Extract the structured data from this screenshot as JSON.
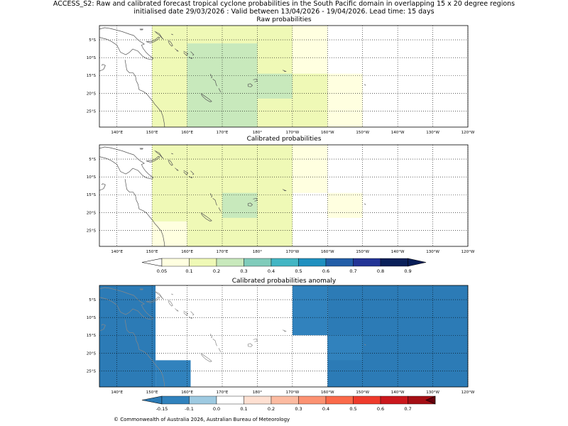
{
  "title": {
    "line1": "ACCESS_S2: Raw and calibrated forecast tropical cyclone probabilities in the South Pacific domain in overlapping 15 x 20 degree regions",
    "line2": "initialised date 29/03/2026 :  Valid between 13/04/2026 - 19/04/2026. Lead time: 15 days"
  },
  "axes": {
    "lon_labels": [
      "140°E",
      "150°E",
      "160°E",
      "170°E",
      "180°",
      "170°W",
      "160°W",
      "150°W",
      "140°W",
      "130°W",
      "120°W"
    ],
    "lat_labels": [
      "5°S",
      "10°S",
      "15°S",
      "20°S",
      "25°S"
    ]
  },
  "colors": {
    "prob": [
      "#ffffe0",
      "#eff9b6",
      "#c8e9bc",
      "#80ccbb",
      "#42b6c4",
      "#1f90c0",
      "#225ea8",
      "#233496",
      "#091f59"
    ],
    "prob_under": "#ffffff",
    "prob_over": "#081d58",
    "anom": [
      "#3182bd",
      "#9ecae1",
      "#ffffff",
      "#fee0d2",
      "#fcbba1",
      "#fc9272",
      "#fb6a4a",
      "#ef3b2c",
      "#cb181d",
      "#a50f15"
    ],
    "anom_under": "#2c7bb6",
    "anom_over": "#67000d",
    "coast": "#555555",
    "coast_anom": "#888888",
    "grid": "#000000"
  },
  "chart_data": [
    {
      "type": "heatmap",
      "title": "Raw probabilities",
      "lon_range": [
        135,
        240
      ],
      "lat_range": [
        -29.5,
        -1
      ],
      "cells": [
        {
          "lon": [
            150,
            160
          ],
          "lat": [
            -29.5,
            -1
          ],
          "value": 0.15
        },
        {
          "lon": [
            160,
            180
          ],
          "lat": [
            -29.5,
            -6
          ],
          "value": 0.25
        },
        {
          "lon": [
            160,
            180
          ],
          "lat": [
            -6,
            -1
          ],
          "value": 0.15
        },
        {
          "lon": [
            180,
            190
          ],
          "lat": [
            -29.5,
            -1
          ],
          "value": 0.15
        },
        {
          "lon": [
            180,
            190
          ],
          "lat": [
            -21.5,
            -14.5
          ],
          "value": 0.25
        },
        {
          "lon": [
            190,
            200
          ],
          "lat": [
            -29.5,
            -1
          ],
          "value": 0.07
        },
        {
          "lon": [
            190,
            200
          ],
          "lat": [
            -29.5,
            -14.5
          ],
          "value": 0.15
        },
        {
          "lon": [
            200,
            210
          ],
          "lat": [
            -29.5,
            -14.5
          ],
          "value": 0.07
        }
      ]
    },
    {
      "type": "heatmap",
      "title": "Calibrated probabilities",
      "lon_range": [
        135,
        240
      ],
      "lat_range": [
        -29.5,
        -1
      ],
      "cells": [
        {
          "lon": [
            150,
            190
          ],
          "lat": [
            -29.5,
            -1
          ],
          "value": 0.15
        },
        {
          "lon": [
            150,
            160
          ],
          "lat": [
            -29.5,
            -22.5
          ],
          "value": 0.07
        },
        {
          "lon": [
            170,
            180
          ],
          "lat": [
            -21.5,
            -14.5
          ],
          "value": 0.25
        },
        {
          "lon": [
            190,
            200
          ],
          "lat": [
            -14.5,
            -1
          ],
          "value": 0.07
        },
        {
          "lon": [
            200,
            210
          ],
          "lat": [
            -21.5,
            -14.5
          ],
          "value": 0.07
        }
      ]
    },
    {
      "type": "heatmap",
      "title": "Calibrated probabilities anomaly",
      "lon_range": [
        135,
        240
      ],
      "lat_range": [
        -29.5,
        -1
      ],
      "cells": [
        {
          "lon": [
            135,
            151
          ],
          "lat": [
            -29.5,
            -1
          ],
          "value": -0.2
        },
        {
          "lon": [
            151,
            161
          ],
          "lat": [
            -29.5,
            -22
          ],
          "value": -0.12
        },
        {
          "lon": [
            190,
            200
          ],
          "lat": [
            -15,
            -1
          ],
          "value": -0.12
        },
        {
          "lon": [
            200,
            240
          ],
          "lat": [
            -29.5,
            -1
          ],
          "value": -0.2
        },
        {
          "lon": [
            200,
            210
          ],
          "lat": [
            -22,
            -15
          ],
          "value": -0.12
        },
        {
          "lon": [
            170,
            180
          ],
          "lat": [
            -22,
            -15
          ],
          "value": 0.05
        }
      ]
    }
  ],
  "colorbars": {
    "prob": {
      "labels": [
        "0.05",
        "0.1",
        "0.2",
        "0.3",
        "0.4",
        "0.5",
        "0.6",
        "0.7",
        "0.8",
        "0.9"
      ]
    },
    "anom": {
      "labels": [
        "-0.15",
        "-0.1",
        "0.0",
        "0.1",
        "0.2",
        "0.3",
        "0.4",
        "0.5",
        "0.6",
        "0.7"
      ]
    }
  },
  "copyright": "© Commonwealth of Australia 2026, Australian Bureau of Meteorology"
}
